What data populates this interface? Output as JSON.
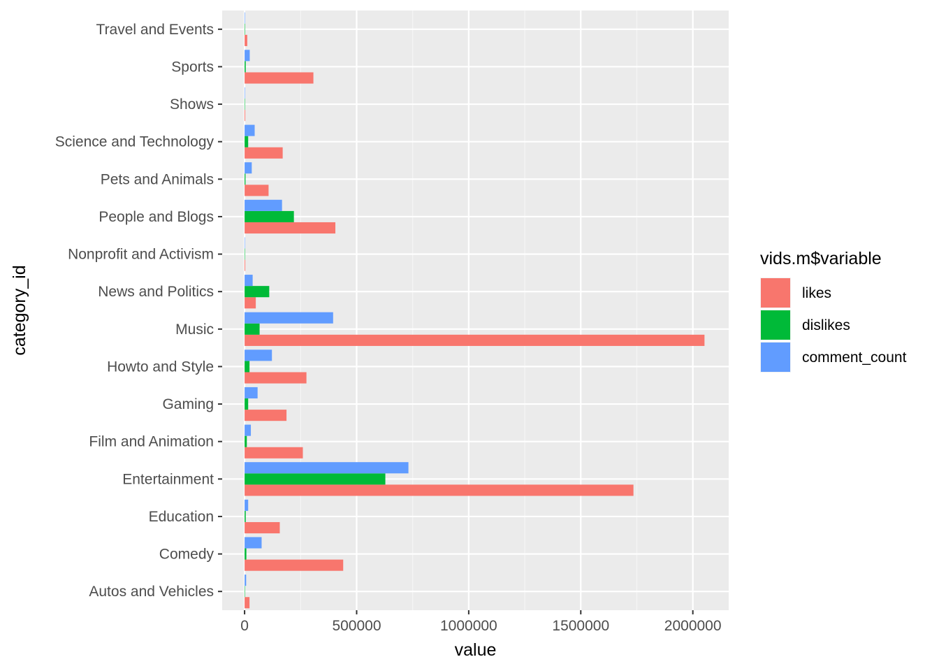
{
  "chart_data": {
    "type": "bar",
    "orientation": "horizontal",
    "position": "dodge",
    "xlabel": "value",
    "ylabel": "category_id",
    "xlim": [
      -100000,
      2160000
    ],
    "xticks": [
      0,
      500000,
      1000000,
      1500000,
      2000000
    ],
    "xtick_labels": [
      "0",
      "500000",
      "1000000",
      "1500000",
      "2000000"
    ],
    "grid": true,
    "legend_position": "right",
    "legend_title": "vids.m$variable",
    "categories": [
      "Autos and Vehicles",
      "Comedy",
      "Education",
      "Entertainment",
      "Film and Animation",
      "Gaming",
      "Howto and Style",
      "Music",
      "News and Politics",
      "Nonprofit and Activism",
      "People and Blogs",
      "Pets and Animals",
      "Science and Technology",
      "Shows",
      "Sports",
      "Travel and Events"
    ],
    "series": [
      {
        "name": "likes",
        "color": "#F8766D",
        "values": [
          22000,
          440000,
          157000,
          1735000,
          260000,
          187000,
          276000,
          2052000,
          50000,
          3000,
          405000,
          107000,
          170000,
          3000,
          307000,
          12000
        ]
      },
      {
        "name": "dislikes",
        "color": "#00BA38",
        "values": [
          1000,
          8000,
          5000,
          628000,
          10000,
          16000,
          22000,
          67000,
          110000,
          500,
          220000,
          4000,
          16000,
          500,
          5000,
          2000
        ]
      },
      {
        "name": "comment_count",
        "color": "#619CFF",
        "values": [
          7000,
          76000,
          16000,
          731000,
          28000,
          58000,
          122000,
          395000,
          36000,
          500,
          167000,
          32000,
          45000,
          2000,
          23000,
          2000
        ]
      }
    ]
  }
}
